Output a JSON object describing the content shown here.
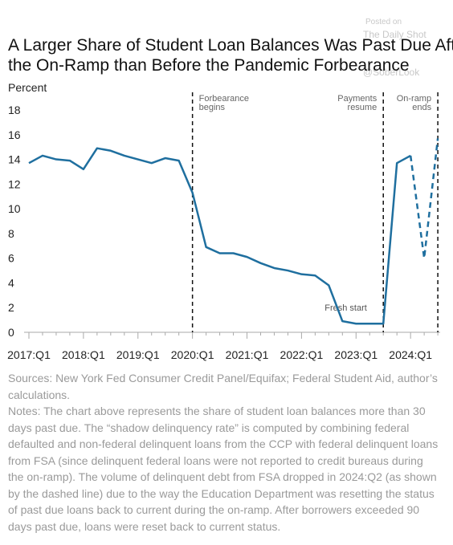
{
  "chart_data": {
    "type": "line",
    "title": [
      "A Larger Share of Student Loan Balances Was Past Due After",
      "the On-Ramp than Before the Pandemic Forbearance"
    ],
    "watermark": [
      "Posted on",
      "The Daily Shot",
      "@SoberLook"
    ],
    "y_label": "Percent",
    "categories": [
      "2017:Q1",
      null,
      null,
      null,
      "2018:Q1",
      null,
      null,
      null,
      "2019:Q1",
      null,
      null,
      null,
      "2020:Q1",
      null,
      null,
      null,
      "2021:Q1",
      null,
      null,
      null,
      "2022:Q1",
      null,
      null,
      null,
      "2023:Q1",
      null,
      null,
      null,
      "2024:Q1",
      null,
      null
    ],
    "series": [
      {
        "color": "#1f6f9f",
        "dashed": false,
        "values": [
          13.7,
          14.3,
          14.0,
          13.9,
          13.2,
          14.9,
          14.7,
          14.3,
          14.0,
          13.7,
          14.1,
          13.9,
          11.3,
          6.9,
          6.4,
          6.4,
          6.1,
          5.6,
          5.2,
          5.0,
          4.7,
          4.6,
          3.8,
          0.9,
          0.7,
          0.7,
          0.7,
          13.7,
          14.3,
          null,
          null
        ]
      },
      {
        "color": "#1f6f9f",
        "dashed": true,
        "values": [
          null,
          null,
          null,
          null,
          null,
          null,
          null,
          null,
          null,
          null,
          null,
          null,
          null,
          null,
          null,
          null,
          null,
          null,
          null,
          null,
          null,
          null,
          null,
          null,
          null,
          null,
          null,
          null,
          14.3,
          6.0,
          15.7
        ]
      }
    ],
    "ylim": [
      0,
      18
    ],
    "yticks": [
      0,
      2,
      4,
      6,
      8,
      10,
      12,
      14,
      16,
      18
    ],
    "grid": false,
    "events": [
      {
        "index": 12,
        "label": [
          "Forbearance",
          "begins"
        ],
        "align": "left"
      },
      {
        "index": 26,
        "label": [
          "Payments",
          "resume"
        ],
        "align": "right"
      },
      {
        "index": 30,
        "label": [
          "On-ramp",
          "ends"
        ],
        "align": "right"
      }
    ],
    "annotations": [
      {
        "text": "Fresh start",
        "index": 21.7,
        "y": 2.0
      }
    ],
    "sources": "Sources: New York Fed Consumer Credit Panel/Equifax; Federal Student Aid, author’s calculations.",
    "notes": "Notes: The chart above represents the share of student loan balances more than 30 days past due. The “shadow delinquency rate” is computed by combining federal defaulted and non-federal delinquent loans from the CCP with federal delinquent loans from FSA (since delinquent federal loans were not reported to credit bureaus during the on-ramp). The volume of delinquent debt from FSA dropped in 2024:Q2 (as shown by the dashed line) due to the way the Education Department was resetting the status of past due loans back to current during the on-ramp. After borrowers exceeded 90 days past due, loans were reset back to current status."
  }
}
